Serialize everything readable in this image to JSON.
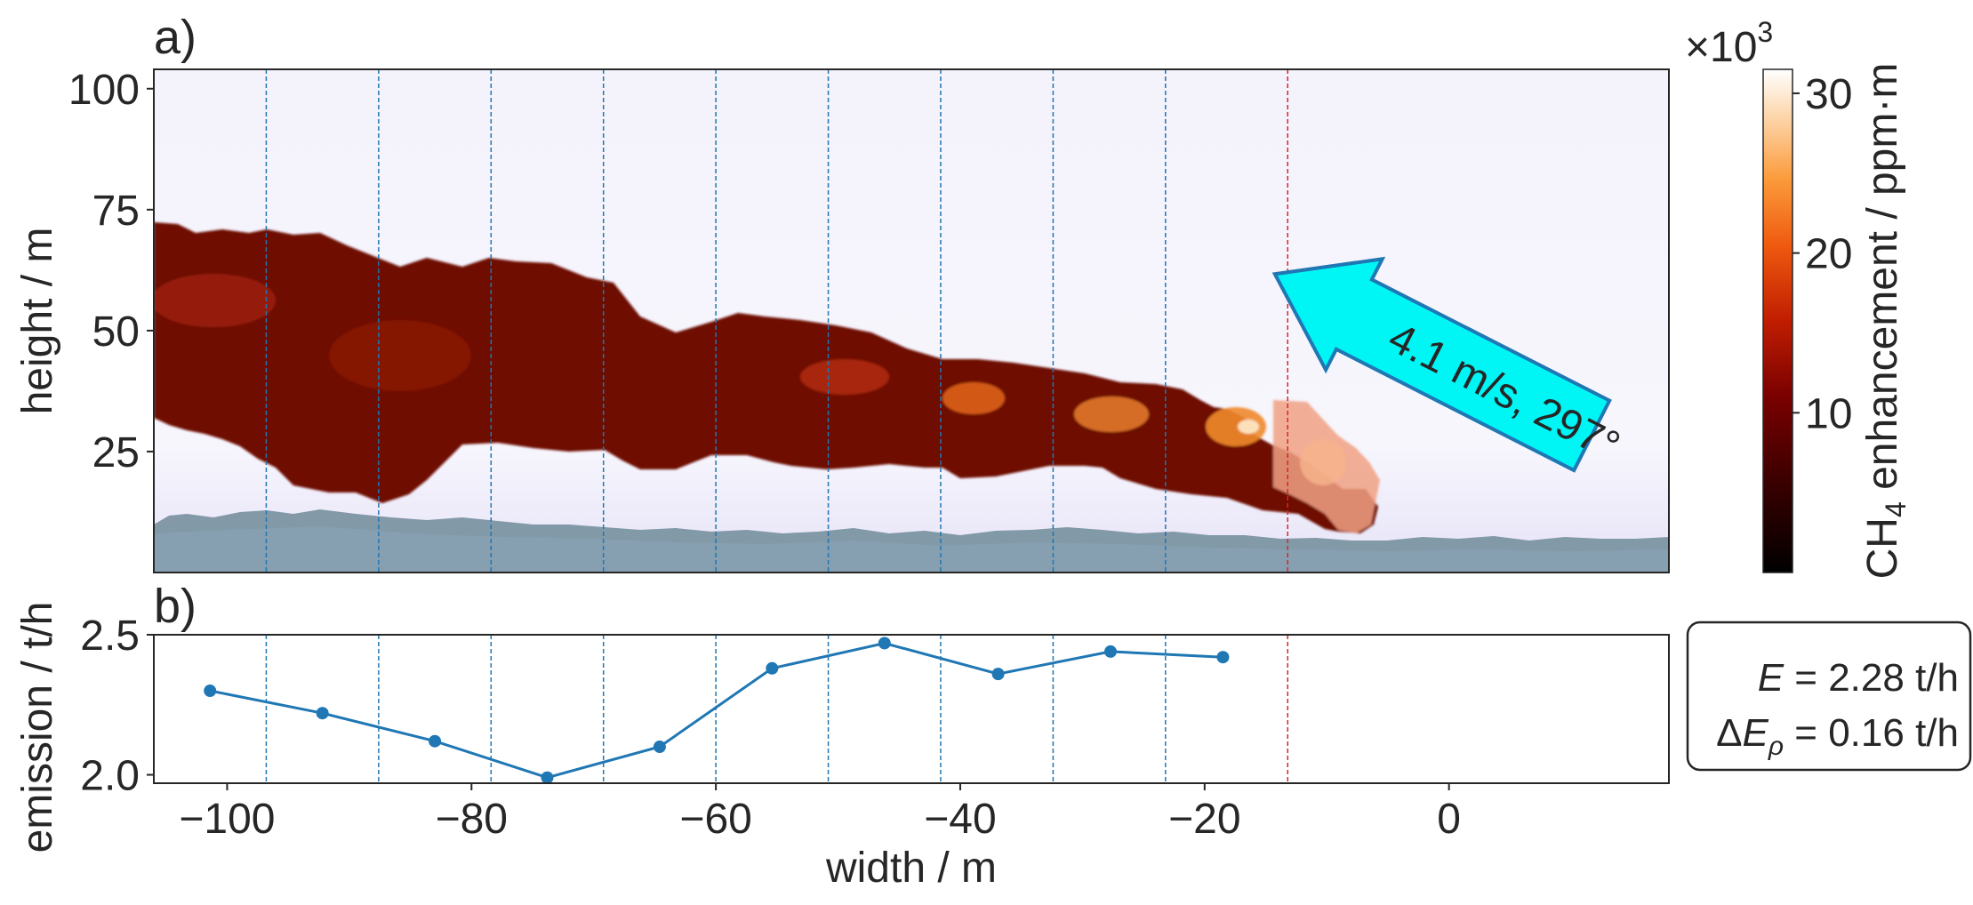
{
  "chart_data": [
    {
      "panel_label": "a)",
      "type": "heatmap",
      "xlim": [
        -106,
        18
      ],
      "ylim": [
        0,
        104
      ],
      "ylabel": "height / m",
      "yticks": [
        {
          "value": 25,
          "label": "25"
        },
        {
          "value": 50,
          "label": "50"
        },
        {
          "value": 75,
          "label": "75"
        },
        {
          "value": 100,
          "label": "100"
        }
      ],
      "transect_x": [
        -106,
        -96.8,
        -87.6,
        -78.4,
        -69.2,
        -60.0,
        -50.8,
        -41.6,
        -32.4,
        -23.2
      ],
      "source_x": -13.2,
      "colorbar": {
        "label_prefix": "CH",
        "label_subscript": "4",
        "label_suffix": " enhancement / ppm·m",
        "multiplier_prefix": "×10",
        "multiplier_exponent": "3",
        "range": [
          0,
          31.5
        ],
        "ticks": [
          {
            "value": 10,
            "label": "10"
          },
          {
            "value": 20,
            "label": "20"
          },
          {
            "value": 30,
            "label": "30"
          }
        ]
      },
      "wind_annotation": "4.1 m/s, 297°",
      "wind_direction_deg": 297
    },
    {
      "panel_label": "b)",
      "type": "line",
      "xlabel": "width / m",
      "ylabel": "emission / t/h",
      "xlim": [
        -106,
        18
      ],
      "ylim": [
        1.97,
        2.5
      ],
      "xticks": [
        {
          "value": -100,
          "label": "−100"
        },
        {
          "value": -80,
          "label": "−80"
        },
        {
          "value": -60,
          "label": "−60"
        },
        {
          "value": -40,
          "label": "−40"
        },
        {
          "value": -20,
          "label": "−20"
        },
        {
          "value": 0,
          "label": "0"
        }
      ],
      "yticks": [
        {
          "value": 2.0,
          "label": "2.0"
        },
        {
          "value": 2.5,
          "label": "2.5"
        }
      ],
      "color": "#1f77b4",
      "x": [
        -101.4,
        -92.2,
        -83.0,
        -73.8,
        -64.6,
        -55.4,
        -46.2,
        -36.9,
        -27.7,
        -18.5
      ],
      "y": [
        2.3,
        2.22,
        2.12,
        1.99,
        2.1,
        2.38,
        2.47,
        2.36,
        2.44,
        2.42
      ],
      "transect_x": [
        -96.8,
        -87.6,
        -78.4,
        -69.2,
        -60.0,
        -50.8,
        -41.6,
        -32.4,
        -23.2
      ],
      "source_x": -13.2
    }
  ],
  "summary_box": {
    "line1_symbol": "E",
    "line1_rest": " = 2.28 t/h",
    "line2_prefix": "Δ",
    "line2_symbol": "E",
    "line2_subscript": "ρ",
    "line2_rest": " = 0.16 t/h"
  },
  "colors": {
    "transect": "#1f77b4",
    "source": "#d62728",
    "arrow_fill": "#00f5f5",
    "arrow_edge": "#1f77b4"
  }
}
